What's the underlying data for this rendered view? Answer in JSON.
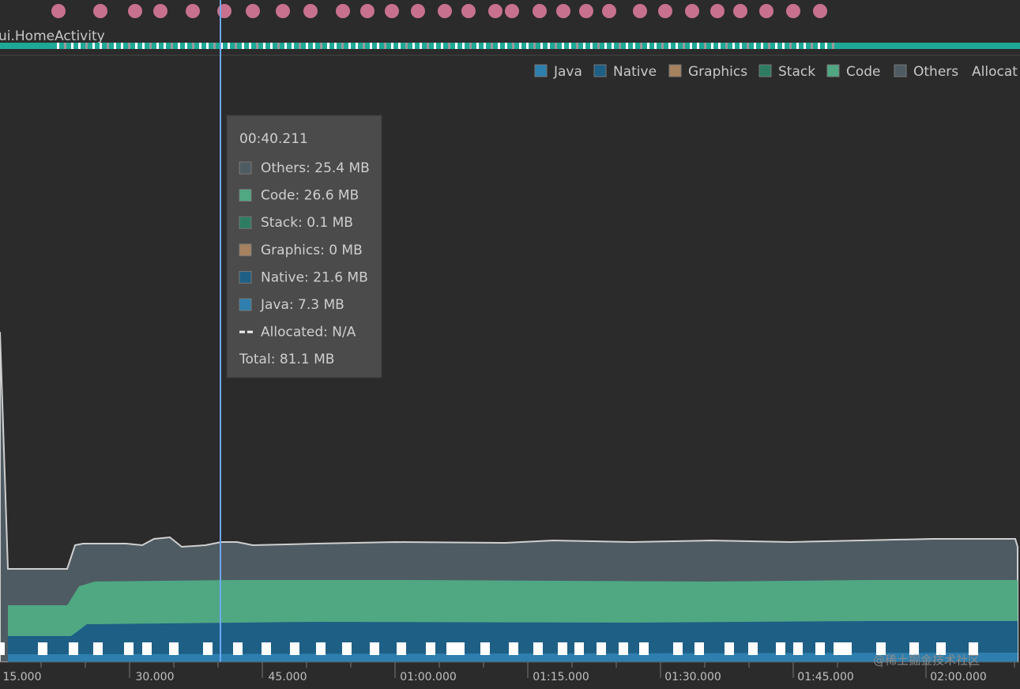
{
  "activity": "ui.HomeActivity",
  "legend": [
    "Java",
    "Native",
    "Graphics",
    "Stack",
    "Code",
    "Others",
    "Allocat"
  ],
  "tooltip": {
    "time": "00:40.211",
    "lines": [
      "Others: 25.4 MB",
      "Code: 26.6 MB",
      "Stack: 0.1 MB",
      "Graphics: 0 MB",
      "Native: 21.6 MB",
      "Java: 7.3 MB",
      "Allocated: N/A"
    ],
    "total": "Total: 81.1 MB"
  },
  "time_axis": [
    "15.000",
    "30.000",
    "45.000",
    "01:00.000",
    "01:15.000",
    "01:30.000",
    "01:45.000",
    "02:00.000"
  ],
  "watermark": "@稀土掘金技术社区"
}
